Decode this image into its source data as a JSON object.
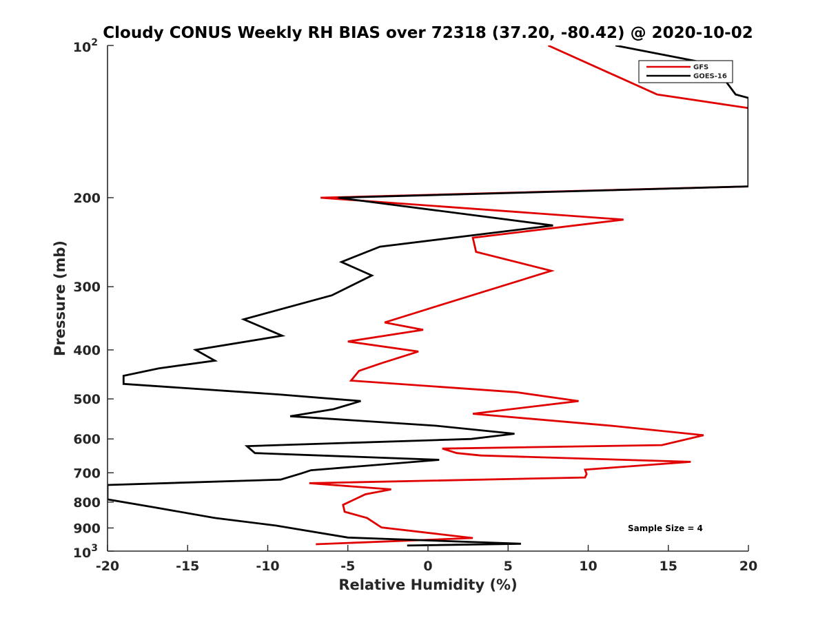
{
  "chart_data": {
    "type": "line",
    "title": "Cloudy CONUS Weekly RH BIAS over 72318 (37.20, -80.42) @ 2020-10-02",
    "xlabel": "Relative Humidity (%)",
    "ylabel": "Pressure (mb)",
    "xlim": [
      -20,
      20
    ],
    "ylim": [
      100,
      1000
    ],
    "yscale": "log",
    "y_reversed": true,
    "xticks": [
      -20,
      -15,
      -10,
      -5,
      0,
      5,
      10,
      15,
      20
    ],
    "yticks": [
      {
        "value": 100,
        "base": "10",
        "exp": "2",
        "label": ""
      },
      {
        "value": 200,
        "label": "200"
      },
      {
        "value": 300,
        "label": "300"
      },
      {
        "value": 400,
        "label": "400"
      },
      {
        "value": 500,
        "label": "500"
      },
      {
        "value": 600,
        "label": "600"
      },
      {
        "value": 700,
        "label": "700"
      },
      {
        "value": 800,
        "label": "800"
      },
      {
        "value": 900,
        "label": "900"
      },
      {
        "value": 1000,
        "base": "10",
        "exp": "3",
        "label": ""
      }
    ],
    "legend_position": "top-right",
    "annotation": "Sample Size = 4",
    "series": [
      {
        "name": "GFS",
        "color": "#e00000",
        "points": [
          [
            7.5,
            100
          ],
          [
            14.3,
            125
          ],
          [
            20.0,
            133
          ],
          [
            20.0,
            190
          ],
          [
            -6.7,
            200
          ],
          [
            12.2,
            221
          ],
          [
            2.8,
            240
          ],
          [
            3.0,
            256
          ],
          [
            7.7,
            279
          ],
          [
            1.2,
            323
          ],
          [
            -2.7,
            353
          ],
          [
            -0.3,
            365
          ],
          [
            -5.0,
            385
          ],
          [
            -0.6,
            403
          ],
          [
            -2.9,
            425
          ],
          [
            -4.3,
            440
          ],
          [
            -4.8,
            460
          ],
          [
            5.5,
            485
          ],
          [
            9.4,
            505
          ],
          [
            2.8,
            535
          ],
          [
            11.7,
            566
          ],
          [
            17.2,
            590
          ],
          [
            14.6,
            617
          ],
          [
            0.9,
            627
          ],
          [
            1.8,
            640
          ],
          [
            3.3,
            647
          ],
          [
            16.4,
            666
          ],
          [
            9.8,
            690
          ],
          [
            9.9,
            704
          ],
          [
            9.8,
            715
          ],
          [
            -7.4,
            734
          ],
          [
            -2.3,
            755
          ],
          [
            -3.9,
            772
          ],
          [
            -5.3,
            810
          ],
          [
            -5.2,
            836
          ],
          [
            -3.8,
            860
          ],
          [
            -2.9,
            898
          ],
          [
            2.8,
            942
          ],
          [
            -7.0,
            969
          ]
        ]
      },
      {
        "name": "GOES-16",
        "color": "#000000",
        "points": [
          [
            11.7,
            100
          ],
          [
            17.8,
            109
          ],
          [
            19.2,
            125
          ],
          [
            20.0,
            127
          ],
          [
            20.0,
            190
          ],
          [
            -5.6,
            200
          ],
          [
            7.8,
            227
          ],
          [
            -3.0,
            250
          ],
          [
            -5.4,
            268
          ],
          [
            -3.5,
            285
          ],
          [
            -6.0,
            312
          ],
          [
            -11.5,
            348
          ],
          [
            -9.1,
            375
          ],
          [
            -14.5,
            400
          ],
          [
            -13.3,
            420
          ],
          [
            -16.8,
            435
          ],
          [
            -19.0,
            450
          ],
          [
            -19.0,
            467
          ],
          [
            -9.3,
            490
          ],
          [
            -4.2,
            505
          ],
          [
            -5.9,
            524
          ],
          [
            -8.6,
            541
          ],
          [
            0.5,
            565
          ],
          [
            5.4,
            586
          ],
          [
            2.7,
            600
          ],
          [
            -11.3,
            620
          ],
          [
            -10.8,
            640
          ],
          [
            0.7,
            660
          ],
          [
            -7.3,
            692
          ],
          [
            -7.9,
            702
          ],
          [
            -9.2,
            722
          ],
          [
            -20.0,
            740
          ],
          [
            -20.0,
            790
          ],
          [
            -17.1,
            819
          ],
          [
            -13.3,
            860
          ],
          [
            -9.5,
            890
          ],
          [
            -5.0,
            940
          ],
          [
            5.8,
            967
          ],
          [
            -1.3,
            975
          ]
        ]
      }
    ]
  }
}
